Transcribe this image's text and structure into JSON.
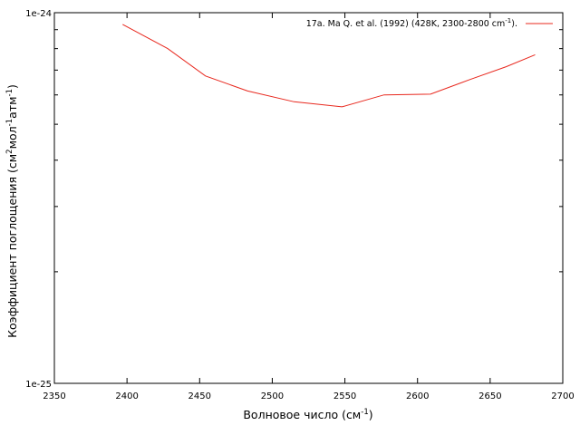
{
  "chart_data": {
    "type": "line",
    "title": "",
    "xlabel": {
      "base": "Волновое число (см",
      "sup": "-1",
      "tail": ")"
    },
    "ylabel": {
      "part1": "Коэффициент поглощения (см",
      "sup1": "2",
      "part2": "мол",
      "sup2": "-1",
      "part3": "атм",
      "sup3": "-1",
      "part4": ")"
    },
    "xlim": [
      2350,
      2700
    ],
    "ylim": [
      1e-25,
      1e-24
    ],
    "yscale": "log",
    "x_ticks": [
      "2350",
      "2400",
      "2450",
      "2500",
      "2550",
      "2600",
      "2650",
      "2700"
    ],
    "y_ticks": [
      "1e-25",
      "1e-24"
    ],
    "grid": false,
    "legend_position": "top-right",
    "series": [
      {
        "name": {
          "base": "17a. Ma Q. et al. (1992) (428K, 2300-2800 cm",
          "sup": "-1",
          "tail": ")."
        },
        "color": "#e8281e",
        "x": [
          2397,
          2428,
          2454,
          2483,
          2515,
          2548,
          2577,
          2609,
          2636,
          2661,
          2681
        ],
        "y": [
          9.3e-25,
          8e-25,
          6.75e-25,
          6.15e-25,
          5.75e-25,
          5.57e-25,
          6e-25,
          6.03e-25,
          6.6e-25,
          7.15e-25,
          7.7e-25
        ]
      }
    ]
  }
}
